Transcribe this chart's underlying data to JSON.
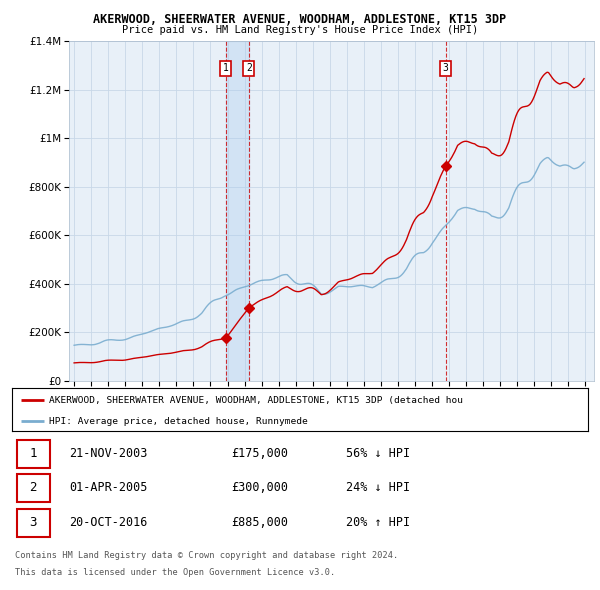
{
  "title": "AKERWOOD, SHEERWATER AVENUE, WOODHAM, ADDLESTONE, KT15 3DP",
  "subtitle": "Price paid vs. HM Land Registry's House Price Index (HPI)",
  "transaction_table": [
    {
      "num": "1",
      "date": "21-NOV-2003",
      "price": "£175,000",
      "hpi": "56% ↓ HPI"
    },
    {
      "num": "2",
      "date": "01-APR-2005",
      "price": "£300,000",
      "hpi": "24% ↓ HPI"
    },
    {
      "num": "3",
      "date": "20-OCT-2016",
      "price": "£885,000",
      "hpi": "20% ↑ HPI"
    }
  ],
  "legend_line1": "AKERWOOD, SHEERWATER AVENUE, WOODHAM, ADDLESTONE, KT15 3DP (detached hou",
  "legend_line2": "HPI: Average price, detached house, Runnymede",
  "footer1": "Contains HM Land Registry data © Crown copyright and database right 2024.",
  "footer2": "This data is licensed under the Open Government Licence v3.0.",
  "red_color": "#cc0000",
  "blue_color": "#7aadcf",
  "background_color": "#ffffff",
  "grid_color": "#c8d8e8",
  "plot_bg_color": "#e8f0f8",
  "ylim": [
    0,
    1400000
  ],
  "xlim_start": 1994.7,
  "xlim_end": 2025.5,
  "t1": 2003.896,
  "t2": 2005.25,
  "t3": 2016.8,
  "sale1": 175000,
  "sale2": 300000,
  "sale3": 885000
}
